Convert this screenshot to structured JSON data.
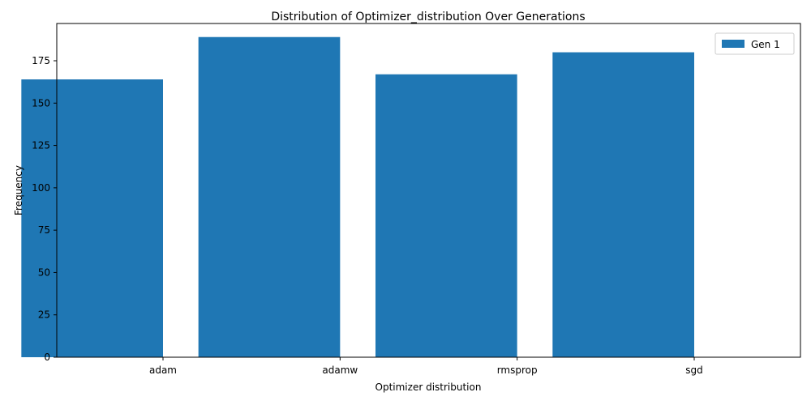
{
  "chart_data": {
    "type": "bar",
    "title": "Distribution of Optimizer_distribution Over Generations",
    "xlabel": "Optimizer distribution",
    "ylabel": "Frequency",
    "categories": [
      "adam",
      "adamw",
      "rmsprop",
      "sgd"
    ],
    "series": [
      {
        "name": "Gen 1",
        "values": [
          164,
          189,
          167,
          180
        ],
        "color": "#1f77b4"
      }
    ],
    "ylim": [
      0,
      197
    ],
    "yticks": [
      0,
      25,
      50,
      75,
      100,
      125,
      150,
      175
    ],
    "grid": false,
    "legend": "top-right"
  }
}
